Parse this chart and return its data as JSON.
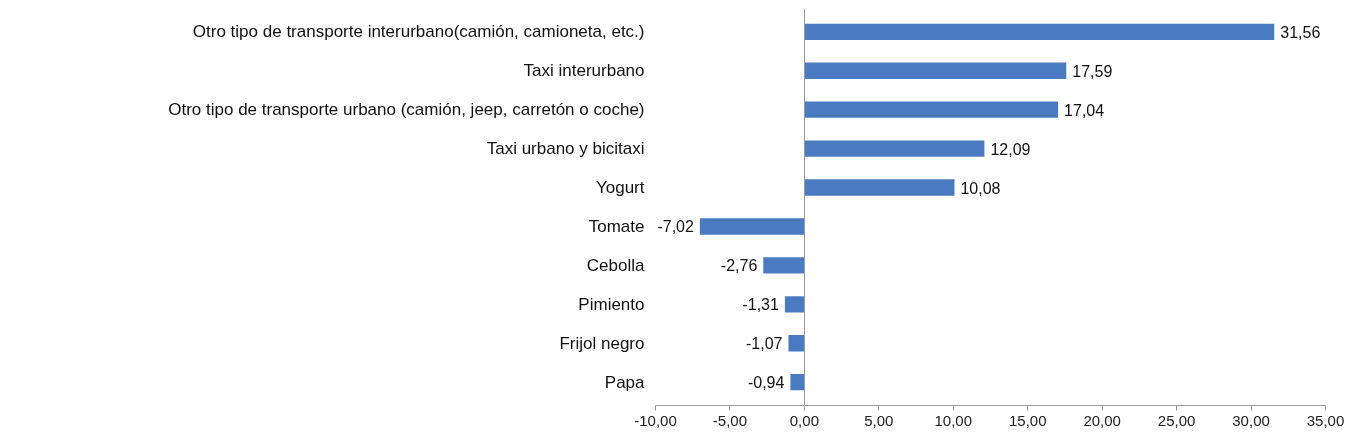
{
  "chart_data": {
    "type": "bar",
    "orientation": "horizontal",
    "categories": [
      "Otro tipo de transporte interurbano(camión, camioneta, etc.)",
      "Taxi interurbano",
      "Otro tipo de transporte urbano (camión, jeep, carretón o coche)",
      "Taxi urbano y bicitaxi",
      "Yogurt",
      "Tomate",
      "Cebolla",
      "Pimiento",
      "Frijol negro",
      "Papa"
    ],
    "values": [
      31.56,
      17.59,
      17.04,
      12.09,
      10.08,
      -7.02,
      -2.76,
      -1.31,
      -1.07,
      -0.94
    ],
    "value_labels": [
      "31,56",
      "17,59",
      "17,04",
      "12,09",
      "10,08",
      "-7,02",
      "-2,76",
      "-1,31",
      "-1,07",
      "-0,94"
    ],
    "color": "#4a7bc0",
    "xlim": [
      -10,
      35
    ],
    "xticks": [
      {
        "value": -10,
        "label": "-10,00"
      },
      {
        "value": -5,
        "label": "-5,00"
      },
      {
        "value": 0,
        "label": "0,00"
      },
      {
        "value": 5,
        "label": "5,00"
      },
      {
        "value": 10,
        "label": "10,00"
      },
      {
        "value": 15,
        "label": "15,00"
      },
      {
        "value": 20,
        "label": "20,00"
      },
      {
        "value": 25,
        "label": "25,00"
      },
      {
        "value": 30,
        "label": "30,00"
      },
      {
        "value": 35,
        "label": "35,00"
      }
    ]
  }
}
